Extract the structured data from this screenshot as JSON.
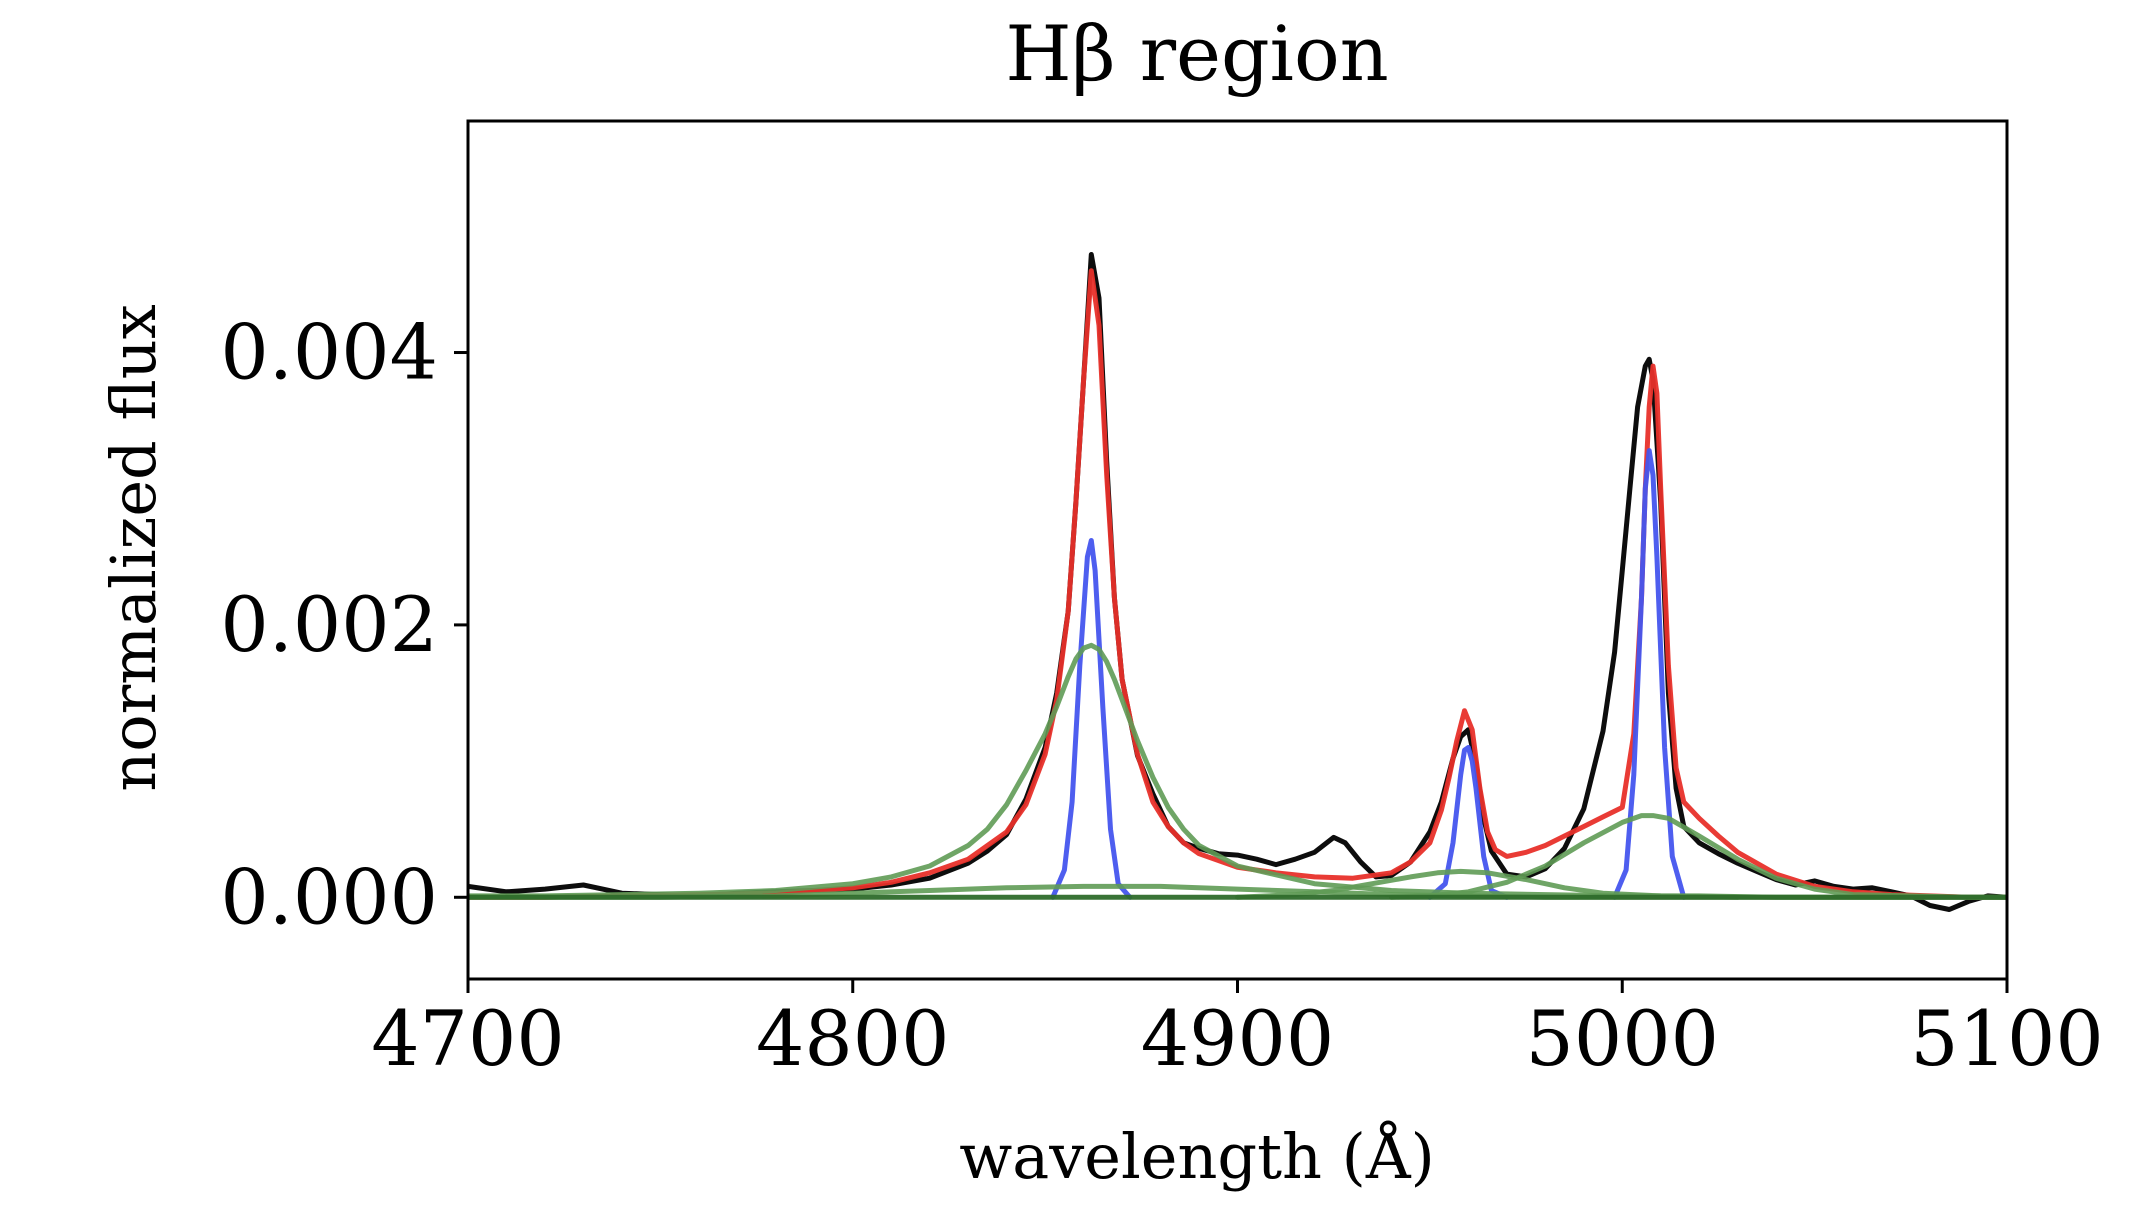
{
  "chart_data": {
    "type": "line",
    "title": "Hβ region",
    "xlabel": "wavelength (Å)",
    "ylabel": "normalized flux",
    "xlim": [
      4700,
      5100
    ],
    "ylim": [
      -0.0006,
      0.0057
    ],
    "xticks": [
      4700,
      4800,
      4900,
      5000,
      5100
    ],
    "xtick_labels": [
      "4700",
      "4800",
      "4900",
      "5000",
      "5100"
    ],
    "yticks": [
      0.0,
      0.002,
      0.004
    ],
    "ytick_labels": [
      "0.000",
      "0.002",
      "0.004"
    ],
    "grid": false,
    "legend": "none",
    "series": [
      {
        "role": "observed spectrum",
        "color": "#000000",
        "x": [
          4700,
          4710,
          4720,
          4730,
          4740,
          4750,
          4760,
          4770,
          4780,
          4790,
          4800,
          4810,
          4820,
          4830,
          4835,
          4840,
          4845,
          4850,
          4853,
          4856,
          4858,
          4860,
          4862,
          4864,
          4866,
          4868,
          4870,
          4874,
          4878,
          4882,
          4886,
          4890,
          4895,
          4900,
          4905,
          4910,
          4915,
          4920,
          4925,
          4928,
          4932,
          4936,
          4940,
          4945,
          4950,
          4953,
          4956,
          4958,
          4960,
          4962,
          4964,
          4966,
          4970,
          4975,
          4980,
          4985,
          4990,
          4995,
          4998,
          5000,
          5002,
          5004,
          5006,
          5007,
          5008,
          5010,
          5012,
          5014,
          5016,
          5020,
          5025,
          5030,
          5035,
          5040,
          5045,
          5050,
          5055,
          5060,
          5065,
          5070,
          5075,
          5080,
          5085,
          5090,
          5095,
          5100
        ],
        "y": [
          8e-05,
          4e-05,
          6e-05,
          9e-05,
          3e-05,
          2e-05,
          1e-05,
          3e-05,
          4e-05,
          5e-05,
          6e-05,
          9e-05,
          0.00014,
          0.00025,
          0.00034,
          0.00046,
          0.00072,
          0.0011,
          0.0015,
          0.0021,
          0.0029,
          0.0038,
          0.00472,
          0.0044,
          0.0032,
          0.0022,
          0.0016,
          0.00104,
          0.00076,
          0.00052,
          0.0004,
          0.00036,
          0.00032,
          0.00031,
          0.00028,
          0.00024,
          0.00028,
          0.00033,
          0.00044,
          0.0004,
          0.00026,
          0.00015,
          0.00016,
          0.00026,
          0.00048,
          0.0007,
          0.00102,
          0.00118,
          0.00123,
          0.00098,
          0.00058,
          0.00034,
          0.00017,
          0.00015,
          0.00021,
          0.00036,
          0.00065,
          0.00122,
          0.0018,
          0.0024,
          0.003,
          0.0036,
          0.0039,
          0.00395,
          0.0038,
          0.0029,
          0.0015,
          0.0008,
          0.00052,
          0.0004,
          0.00032,
          0.00025,
          0.00019,
          0.00013,
          9e-05,
          0.00012,
          8e-05,
          6e-05,
          7e-05,
          4e-05,
          1e-05,
          -6e-05,
          -9e-05,
          -3e-05,
          1e-05,
          0.0
        ]
      },
      {
        "role": "total model fit",
        "color": "#e8302a",
        "x": [
          4700,
          4720,
          4740,
          4760,
          4780,
          4800,
          4810,
          4820,
          4830,
          4840,
          4845,
          4850,
          4853,
          4856,
          4858,
          4860,
          4862,
          4864,
          4866,
          4868,
          4870,
          4874,
          4878,
          4882,
          4886,
          4890,
          4900,
          4910,
          4920,
          4930,
          4940,
          4945,
          4950,
          4953,
          4955,
          4957,
          4959,
          4961,
          4963,
          4965,
          4967,
          4970,
          4975,
          4980,
          4985,
          4990,
          4995,
          5000,
          5003,
          5005,
          5006,
          5007,
          5008,
          5009,
          5010,
          5012,
          5014,
          5016,
          5020,
          5025,
          5030,
          5040,
          5050,
          5060,
          5070,
          5080,
          5090,
          5100
        ],
        "y": [
          0.0,
          0.0,
          1e-05,
          2e-05,
          3e-05,
          7e-05,
          0.00011,
          0.00018,
          0.00028,
          0.00048,
          0.00068,
          0.00105,
          0.00145,
          0.0021,
          0.0029,
          0.0038,
          0.0046,
          0.0042,
          0.0031,
          0.0022,
          0.0016,
          0.00105,
          0.0007,
          0.00052,
          0.0004,
          0.00032,
          0.00022,
          0.00018,
          0.00015,
          0.00014,
          0.00018,
          0.00026,
          0.0004,
          0.00064,
          0.00088,
          0.00115,
          0.00137,
          0.00123,
          0.0008,
          0.00048,
          0.00035,
          0.0003,
          0.00033,
          0.00038,
          0.00045,
          0.00052,
          0.00059,
          0.00066,
          0.0012,
          0.0022,
          0.003,
          0.0036,
          0.0039,
          0.0037,
          0.003,
          0.0017,
          0.00095,
          0.0007,
          0.00058,
          0.00045,
          0.00033,
          0.00017,
          8e-05,
          4e-05,
          2e-05,
          1e-05,
          0.0,
          0.0
        ]
      },
      {
        "role": "narrow H-beta component",
        "color": "#4455ee",
        "x": [
          4852,
          4855,
          4857,
          4859,
          4861,
          4862,
          4863,
          4865,
          4867,
          4869,
          4872
        ],
        "y": [
          0.0,
          0.0002,
          0.0007,
          0.0017,
          0.0025,
          0.00262,
          0.0024,
          0.0014,
          0.0005,
          0.0001,
          0.0
        ]
      },
      {
        "role": "narrow [OIII] 4959 component",
        "color": "#4455ee",
        "x": [
          4950,
          4954,
          4956,
          4958,
          4959,
          4960,
          4961,
          4962,
          4964,
          4966,
          4970
        ],
        "y": [
          0.0,
          0.0001,
          0.0004,
          0.0009,
          0.00108,
          0.0011,
          0.001,
          0.0008,
          0.0003,
          5e-05,
          0.0
        ]
      },
      {
        "role": "narrow [OIII] 5007 component",
        "color": "#4455ee",
        "x": [
          4998,
          5001,
          5003,
          5005,
          5006,
          5007,
          5008,
          5009,
          5011,
          5013,
          5016
        ],
        "y": [
          0.0,
          0.0002,
          0.0009,
          0.0022,
          0.003,
          0.00328,
          0.0031,
          0.0025,
          0.0011,
          0.0003,
          0.0
        ]
      },
      {
        "role": "broad H-beta component",
        "color": "#5f9b55",
        "x": [
          4700,
          4720,
          4740,
          4760,
          4780,
          4800,
          4810,
          4820,
          4830,
          4835,
          4840,
          4845,
          4850,
          4853,
          4856,
          4858,
          4860,
          4862,
          4864,
          4866,
          4868,
          4870,
          4874,
          4878,
          4882,
          4886,
          4890,
          4900,
          4920,
          4940,
          4960,
          4980,
          5000,
          5020,
          5040,
          5060,
          5080,
          5100
        ],
        "y": [
          1e-05,
          1e-05,
          2e-05,
          3e-05,
          5e-05,
          0.0001,
          0.00015,
          0.00023,
          0.00038,
          0.0005,
          0.00068,
          0.00093,
          0.0012,
          0.0014,
          0.00162,
          0.00175,
          0.00183,
          0.00185,
          0.00182,
          0.00173,
          0.0016,
          0.00145,
          0.00115,
          0.00088,
          0.00066,
          0.0005,
          0.00038,
          0.00023,
          0.0001,
          5e-05,
          3e-05,
          2e-05,
          1e-05,
          1e-05,
          0.0,
          0.0,
          0.0,
          0.0
        ]
      },
      {
        "role": "very broad H-beta component",
        "color": "#5f9b55",
        "x": [
          4700,
          4750,
          4780,
          4800,
          4820,
          4840,
          4860,
          4880,
          4900,
          4920,
          4940,
          4960,
          4980,
          5000,
          5020,
          5050,
          5100
        ],
        "y": [
          0.0,
          0.0,
          1e-05,
          3e-05,
          5e-05,
          7e-05,
          8e-05,
          8e-05,
          6e-05,
          4e-05,
          2e-05,
          1e-05,
          0.0,
          0.0,
          0.0,
          0.0,
          0.0
        ]
      },
      {
        "role": "broad [OIII] 4959 component",
        "color": "#5f9b55",
        "x": [
          4900,
          4915,
          4925,
          4935,
          4945,
          4952,
          4958,
          4965,
          4975,
          4985,
          4995,
          5010,
          5030
        ],
        "y": [
          0.0,
          2e-05,
          5e-05,
          0.0001,
          0.00015,
          0.00018,
          0.00019,
          0.00018,
          0.00013,
          7e-05,
          3e-05,
          1e-05,
          0.0
        ]
      },
      {
        "role": "broad [OIII] 5007 component",
        "color": "#5f9b55",
        "x": [
          4940,
          4950,
          4960,
          4970,
          4980,
          4990,
          5000,
          5005,
          5008,
          5012,
          5020,
          5030,
          5040,
          5050,
          5060,
          5075,
          5090,
          5100
        ],
        "y": [
          0.0,
          1e-05,
          4e-05,
          0.00011,
          0.00023,
          0.0004,
          0.00055,
          0.0006,
          0.0006,
          0.00058,
          0.00045,
          0.00028,
          0.00014,
          6e-05,
          2e-05,
          1e-05,
          0.0,
          0.0
        ]
      },
      {
        "role": "continuum",
        "color": "#2e6b2b",
        "x": [
          4700,
          5100
        ],
        "y": [
          0.0,
          0.0
        ]
      }
    ]
  }
}
